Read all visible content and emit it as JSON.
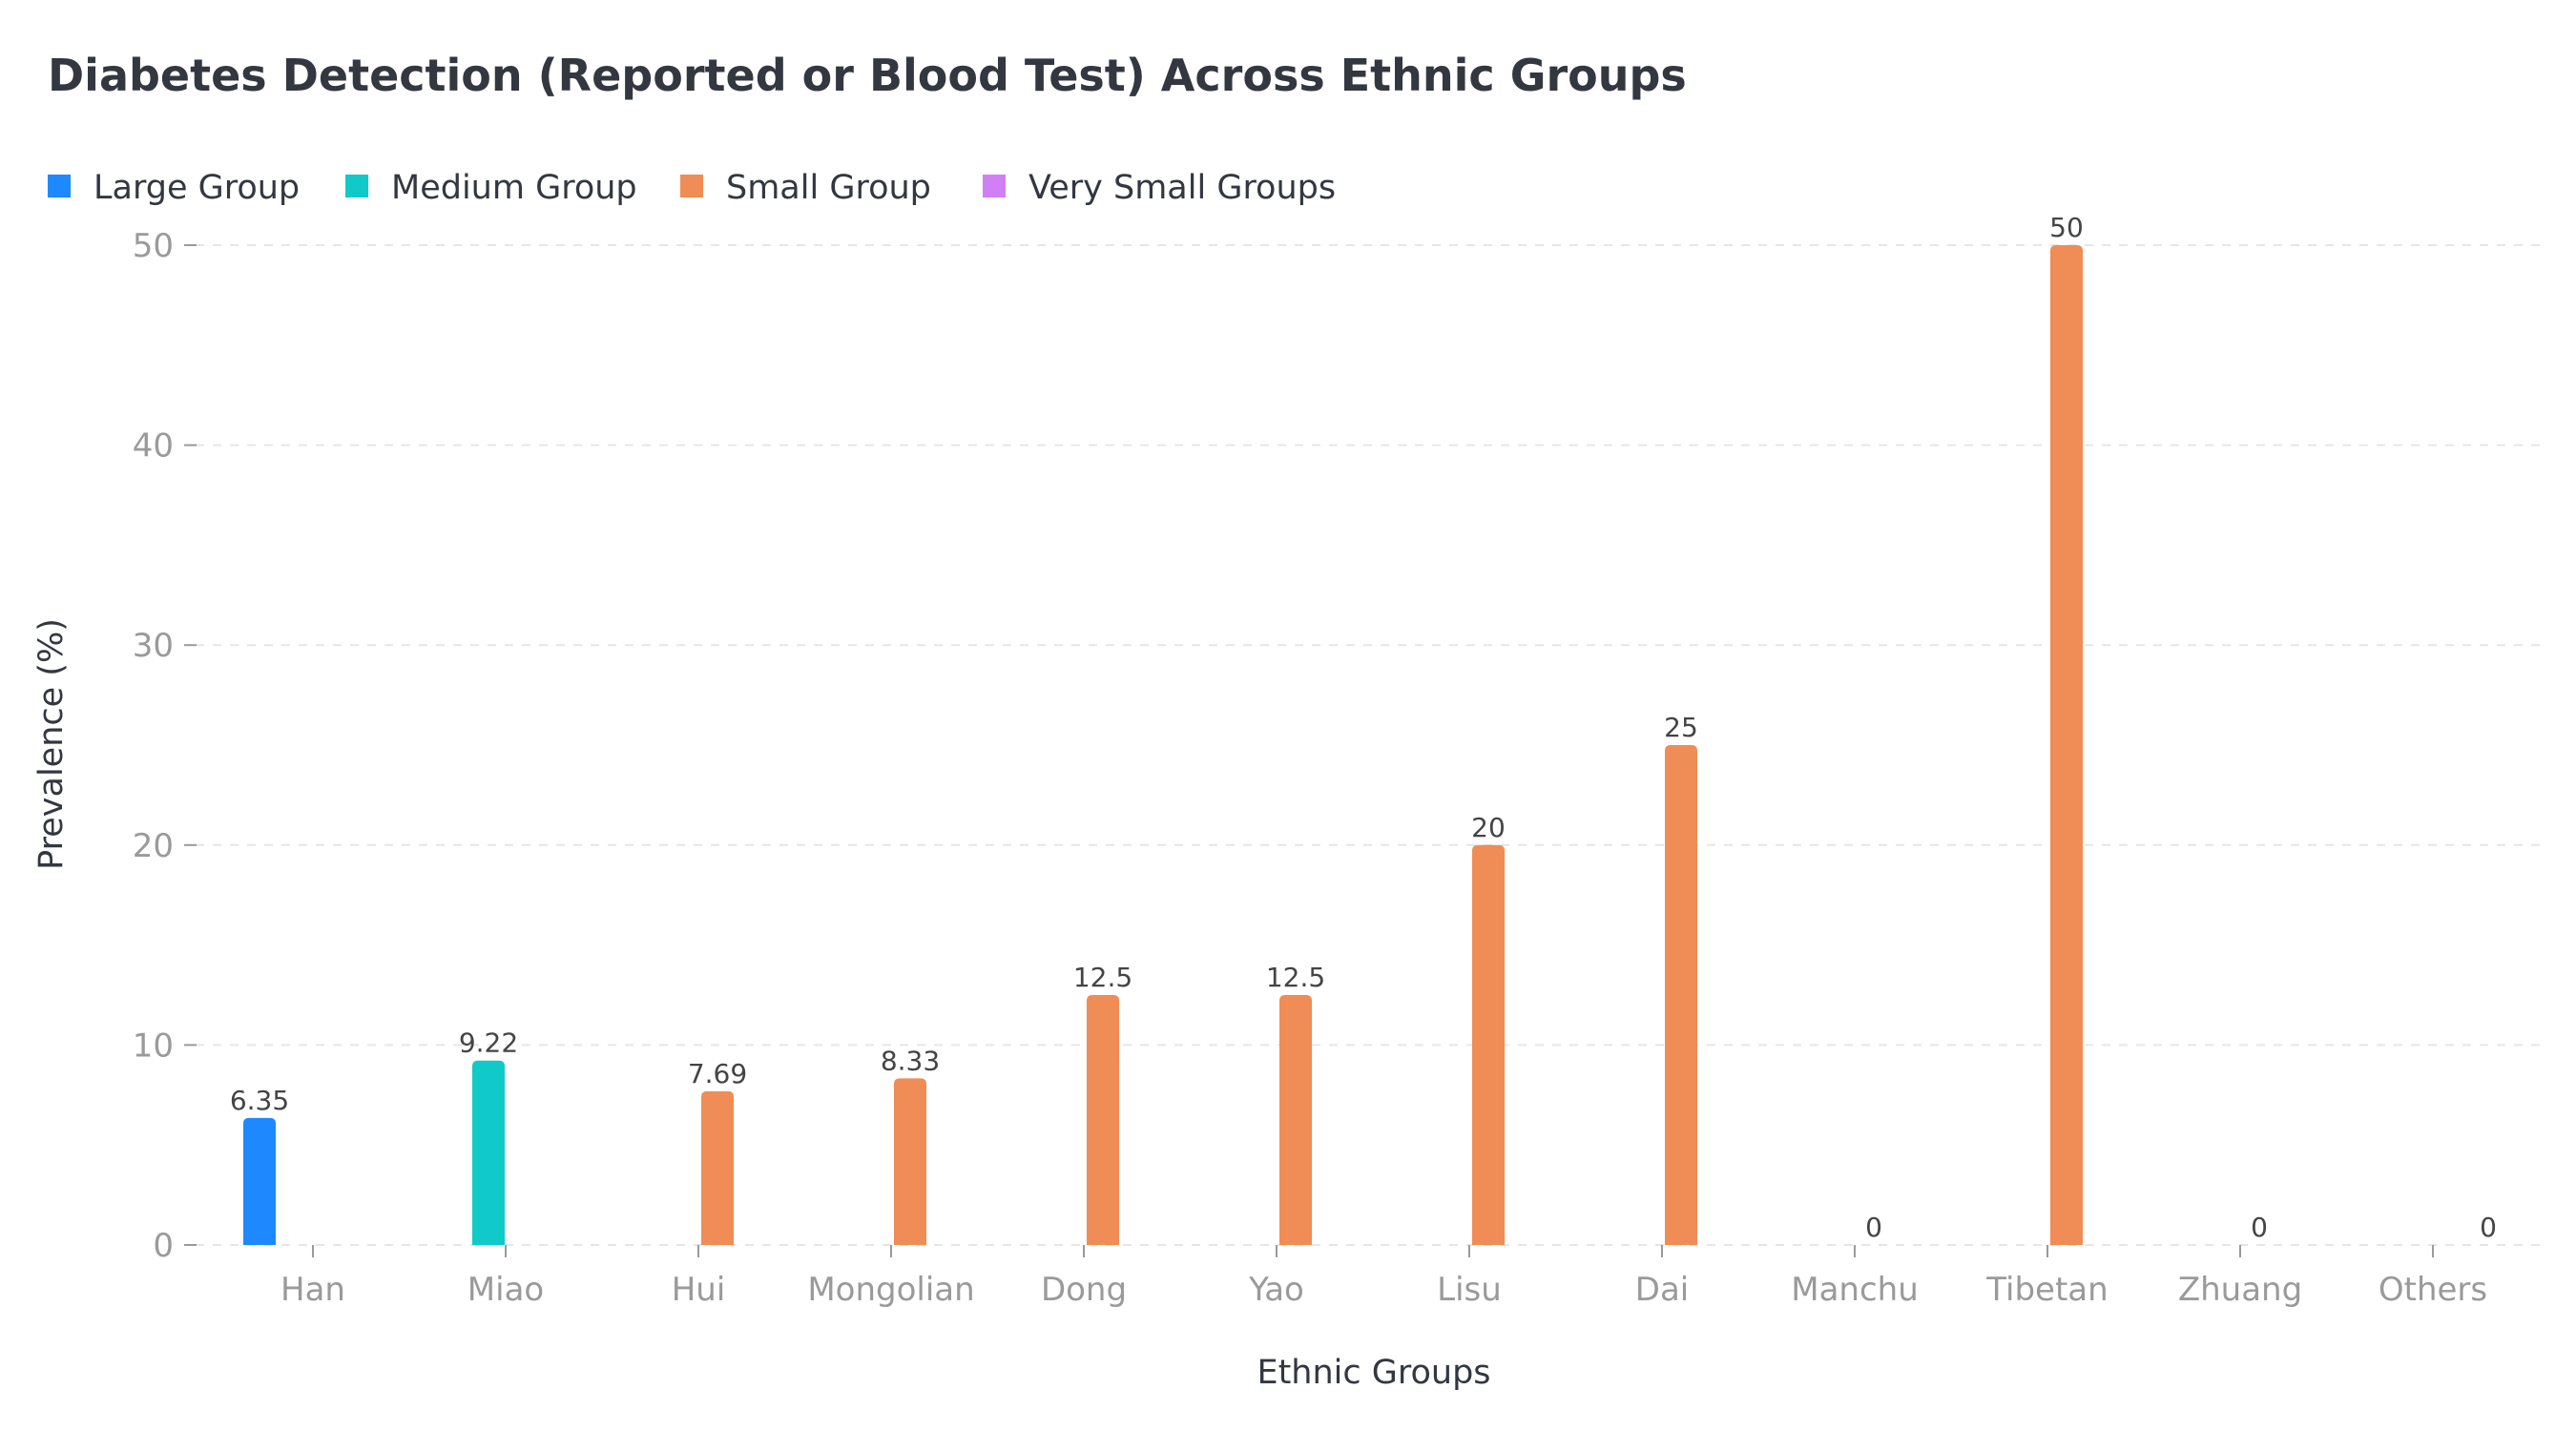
{
  "chart_data": {
    "type": "bar",
    "title": "Diabetes Detection (Reported or Blood Test) Across Ethnic Groups",
    "xlabel": "Ethnic Groups",
    "ylabel": "Prevalence (%)",
    "ylim": [
      0,
      50
    ],
    "yticks": [
      0,
      10,
      20,
      30,
      40,
      50
    ],
    "grid": true,
    "legend_position": "top-left",
    "categories": [
      "Han",
      "Miao",
      "Hui",
      "Mongolian",
      "Dong",
      "Yao",
      "Lisu",
      "Dai",
      "Manchu",
      "Tibetan",
      "Zhuang",
      "Others"
    ],
    "series": [
      {
        "name": "Large Group",
        "color": "#1e88ff",
        "values": [
          6.35,
          null,
          null,
          null,
          null,
          null,
          null,
          null,
          null,
          null,
          null,
          null
        ]
      },
      {
        "name": "Medium Group",
        "color": "#10c9c9",
        "values": [
          null,
          9.22,
          null,
          null,
          null,
          null,
          null,
          null,
          null,
          null,
          null,
          null
        ]
      },
      {
        "name": "Small Group",
        "color": "#f08c55",
        "values": [
          null,
          null,
          7.69,
          8.33,
          12.5,
          12.5,
          20,
          25,
          0,
          50,
          0,
          null
        ]
      },
      {
        "name": "Very Small Groups",
        "color": "#d17ff7",
        "values": [
          null,
          null,
          null,
          null,
          null,
          null,
          null,
          null,
          null,
          null,
          null,
          0
        ]
      }
    ],
    "data_labels": [
      "6.35",
      "9.22",
      "7.69",
      "8.33",
      "12.5",
      "12.5",
      "20",
      "25",
      "0",
      "50",
      "0",
      "0"
    ]
  }
}
